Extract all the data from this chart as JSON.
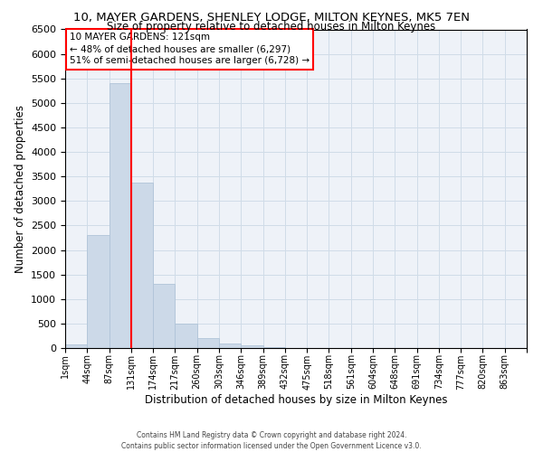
{
  "title": "10, MAYER GARDENS, SHENLEY LODGE, MILTON KEYNES, MK5 7EN",
  "subtitle": "Size of property relative to detached houses in Milton Keynes",
  "xlabel": "Distribution of detached houses by size in Milton Keynes",
  "ylabel": "Number of detached properties",
  "footer_line1": "Contains HM Land Registry data © Crown copyright and database right 2024.",
  "footer_line2": "Contains public sector information licensed under the Open Government Licence v3.0.",
  "annotation_title": "10 MAYER GARDENS: 121sqm",
  "annotation_line1": "← 48% of detached houses are smaller (6,297)",
  "annotation_line2": "51% of semi-detached houses are larger (6,728) →",
  "property_size": 121,
  "bar_color": "#ccd9e8",
  "bar_edge_color": "#b0c4d8",
  "vline_color": "red",
  "grid_color": "#d0dce8",
  "background_color": "#eef2f8",
  "categories": [
    "1sqm",
    "44sqm",
    "87sqm",
    "131sqm",
    "174sqm",
    "217sqm",
    "260sqm",
    "303sqm",
    "346sqm",
    "389sqm",
    "432sqm",
    "475sqm",
    "518sqm",
    "561sqm",
    "604sqm",
    "648sqm",
    "691sqm",
    "734sqm",
    "777sqm",
    "820sqm",
    "863sqm"
  ],
  "values": [
    80,
    2300,
    5400,
    3380,
    1310,
    490,
    200,
    90,
    50,
    10,
    5,
    3,
    2,
    1,
    1,
    0,
    0,
    0,
    0,
    0,
    0
  ],
  "ylim": [
    0,
    6500
  ],
  "yticks": [
    0,
    500,
    1000,
    1500,
    2000,
    2500,
    3000,
    3500,
    4000,
    4500,
    5000,
    5500,
    6000,
    6500
  ],
  "vline_bar_index": 3
}
